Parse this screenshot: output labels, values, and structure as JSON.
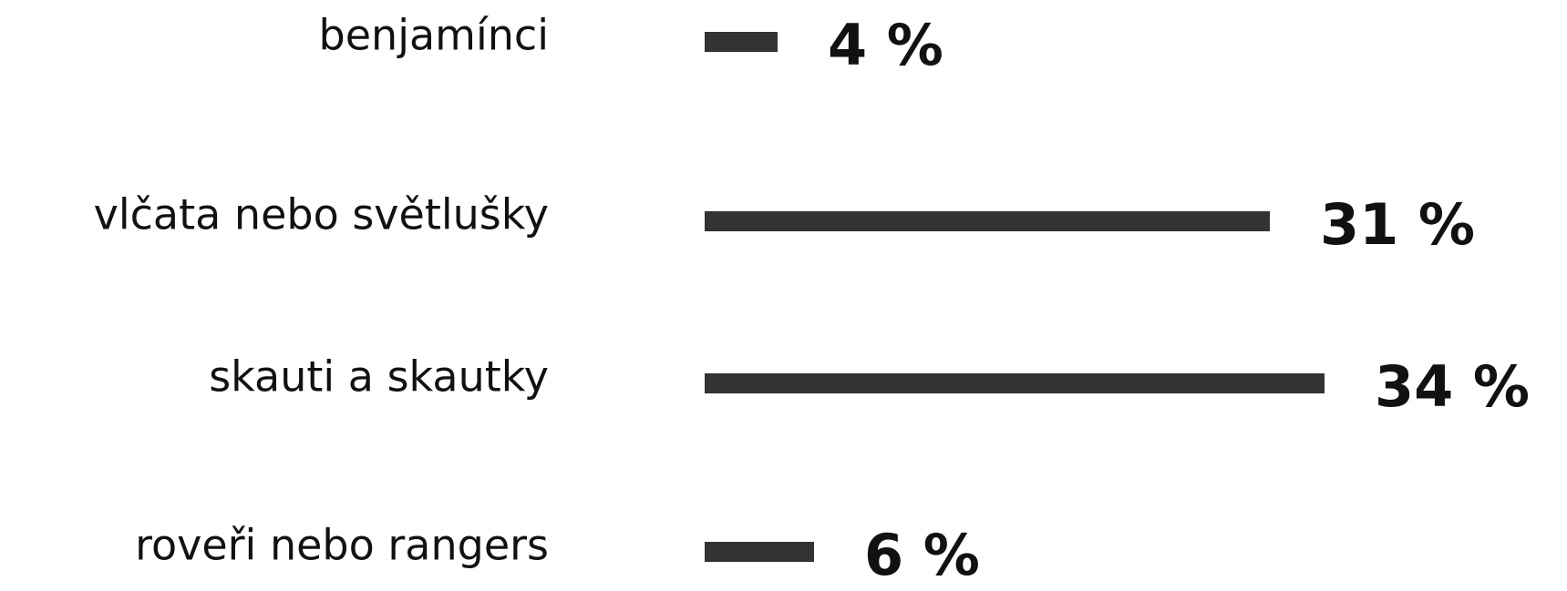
{
  "chart_data": {
    "type": "bar",
    "categories": [
      "benjamínci",
      "vlčata nebo světlušky",
      "skauti a skautky",
      "roveři nebo rangers"
    ],
    "values": [
      4,
      31,
      34,
      6
    ],
    "value_labels": [
      "4 %",
      "31 %",
      "34 %",
      "6 %"
    ],
    "color": "#333333"
  }
}
